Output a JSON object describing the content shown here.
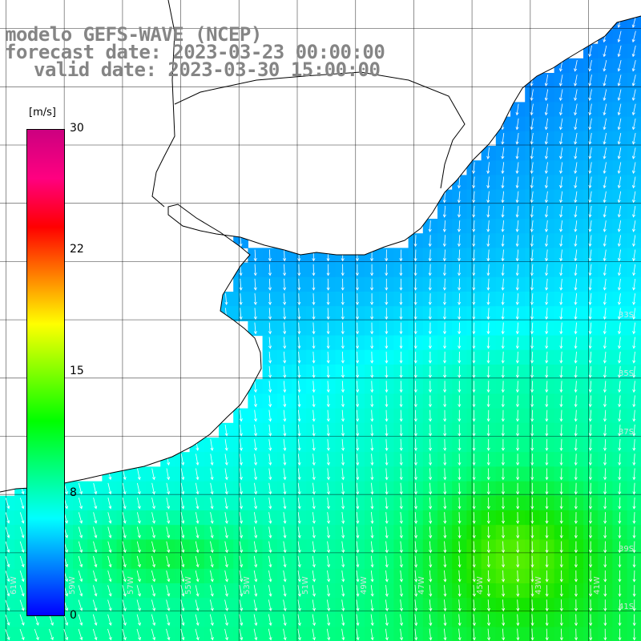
{
  "title": {
    "line1": "modelo GEFS-WAVE (NCEP)",
    "line2": "forecast date: 2023-03-23 00:00:00",
    "line3": "valid date: 2023-03-30 15:00:00"
  },
  "colorbar": {
    "units": "[m/s]",
    "ticks": [
      "30",
      "22",
      "15",
      "8",
      "0"
    ],
    "tick_values": [
      30,
      22,
      15,
      8,
      0
    ],
    "range": [
      0,
      30
    ],
    "colors": [
      "#0000ff",
      "#0080ff",
      "#00ffff",
      "#00ff80",
      "#00ff00",
      "#80ff00",
      "#ffff00",
      "#ff8000",
      "#ff0000",
      "#ff0080",
      "#cc0080"
    ]
  },
  "map": {
    "lon_labels": [
      "61W",
      "59W",
      "57W",
      "55W",
      "53W",
      "51W",
      "49W",
      "47W",
      "45W",
      "43W",
      "41W"
    ],
    "lat_labels": [
      "33S",
      "35S",
      "37S",
      "39S",
      "41S"
    ],
    "land_color": "#ffffff",
    "grid_color": "#000000",
    "arrow_color": "#ffffff"
  }
}
